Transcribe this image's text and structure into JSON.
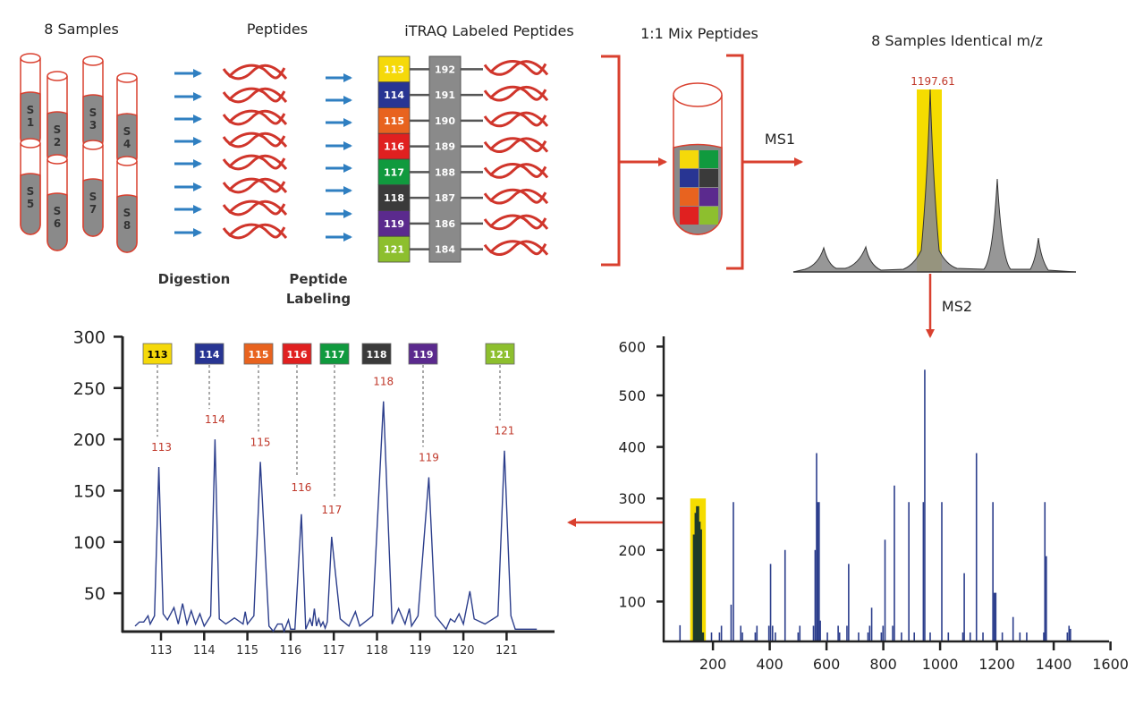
{
  "titles": {
    "samples": "8 Samples",
    "peptides": "Peptides",
    "itraq": "iTRAQ Labeled Peptides",
    "mix": "1:1 Mix Peptides",
    "identical": "8 Samples Identical m/z"
  },
  "steps": {
    "digestion": "Digestion",
    "labeling_line1": "Peptide",
    "labeling_line2": "Labeling",
    "ms1": "MS1",
    "ms2": "MS2"
  },
  "samples": [
    {
      "letter": "S",
      "number": "1"
    },
    {
      "letter": "S",
      "number": "2"
    },
    {
      "letter": "S",
      "number": "3"
    },
    {
      "letter": "S",
      "number": "4"
    },
    {
      "letter": "S",
      "number": "5"
    },
    {
      "letter": "S",
      "number": "6"
    },
    {
      "letter": "S",
      "number": "7"
    },
    {
      "letter": "S",
      "number": "8"
    }
  ],
  "tags": [
    {
      "reporter": "113",
      "balance": "192",
      "color": "#f5d90a"
    },
    {
      "reporter": "114",
      "balance": "191",
      "color": "#283593"
    },
    {
      "reporter": "115",
      "balance": "190",
      "color": "#e8631f"
    },
    {
      "reporter": "116",
      "balance": "189",
      "color": "#e02020"
    },
    {
      "reporter": "117",
      "balance": "188",
      "color": "#109a3e"
    },
    {
      "reporter": "118",
      "balance": "187",
      "color": "#3a3a3a"
    },
    {
      "reporter": "119",
      "balance": "186",
      "color": "#5b2a8e"
    },
    {
      "reporter": "121",
      "balance": "184",
      "color": "#8dbf2e"
    }
  ],
  "colors": {
    "arrow_blue": "#2f7fc1",
    "peptide_red": "#d0352b",
    "bracket_red": "#d9402f",
    "highlight_yellow": "#f5dc00",
    "balance_gray": "#8a8a8a",
    "spectrum_blue": "#2c3e8c",
    "ms1_fill": "#8c8c8c"
  },
  "ms1": {
    "precursor_label": "1197.61"
  },
  "chart_data": [
    {
      "type": "line",
      "xlabel": "",
      "ylabel": "",
      "xlim": [
        112.3,
        121.8
      ],
      "ylim": [
        12,
        300
      ],
      "x_ticks": [
        "113",
        "114",
        "115",
        "116",
        "117",
        "118",
        "119",
        "120",
        "121"
      ],
      "y_ticks": [
        "50",
        "100",
        "150",
        "200",
        "250",
        "300"
      ],
      "peaks": [
        {
          "label": "113",
          "x": 112.95,
          "y": 173
        },
        {
          "label": "114",
          "x": 114.25,
          "y": 200
        },
        {
          "label": "115",
          "x": 115.3,
          "y": 178
        },
        {
          "label": "116",
          "x": 116.25,
          "y": 127
        },
        {
          "label": "117",
          "x": 116.95,
          "y": 105
        },
        {
          "label": "118",
          "x": 118.15,
          "y": 237
        },
        {
          "label": "119",
          "x": 119.2,
          "y": 163
        },
        {
          "label": "121",
          "x": 120.95,
          "y": 189
        }
      ],
      "series": [
        {
          "x": [
            112.4,
            112.5,
            112.6,
            112.7,
            112.75,
            112.85,
            112.95,
            113.05,
            113.15,
            113.3,
            113.4,
            113.5,
            113.6,
            113.7,
            113.8,
            113.9,
            114.0,
            114.15,
            114.25,
            114.35,
            114.5,
            114.7,
            114.9,
            114.95,
            115.0,
            115.15,
            115.3,
            115.5,
            115.6,
            115.7,
            115.8,
            115.85,
            115.95,
            116.0,
            116.1,
            116.25,
            116.35,
            116.45,
            116.5,
            116.55,
            116.6,
            116.65,
            116.7,
            116.75,
            116.8,
            116.85,
            116.95,
            117.15,
            117.35,
            117.5,
            117.6,
            117.9,
            118.15,
            118.35,
            118.5,
            118.65,
            118.75,
            118.8,
            118.95,
            119.2,
            119.35,
            119.6,
            119.7,
            119.8,
            119.9,
            120.0,
            120.15,
            120.25,
            120.5,
            120.8,
            120.95,
            121.1,
            121.2,
            121.7
          ],
          "y": [
            18,
            22,
            22,
            28,
            20,
            28,
            173,
            30,
            24,
            36,
            20,
            40,
            20,
            33,
            20,
            30,
            18,
            28,
            200,
            25,
            20,
            26,
            20,
            32,
            20,
            28,
            178,
            18,
            13,
            20,
            20,
            13,
            24,
            15,
            15,
            127,
            15,
            25,
            18,
            35,
            18,
            25,
            18,
            22,
            16,
            22,
            105,
            25,
            18,
            32,
            18,
            28,
            237,
            20,
            35,
            20,
            35,
            18,
            28,
            163,
            28,
            15,
            25,
            22,
            30,
            20,
            52,
            25,
            20,
            28,
            189,
            28,
            15,
            15
          ]
        }
      ]
    },
    {
      "type": "bar",
      "xlabel": "",
      "ylabel": "",
      "xlim": [
        0,
        1600
      ],
      "ylim": [
        0,
        600
      ],
      "x_ticks": [
        "200",
        "400",
        "600",
        "800",
        "1000",
        "1200",
        "1400",
        "1600"
      ],
      "y_ticks": [
        "100",
        "200",
        "300",
        "400",
        "500",
        "600"
      ],
      "highlight_range": [
        120,
        175
      ],
      "highlighted_bars": {
        "x": [
          135,
          141,
          146,
          151,
          156,
          163
        ],
        "y": [
          230,
          272,
          285,
          255,
          240,
          40
        ]
      },
      "series": [
        {
          "x": [
            84,
            195,
            223,
            230,
            264,
            272,
            298,
            304,
            349,
            355,
            397,
            403,
            410,
            420,
            454,
            500,
            506,
            554,
            560,
            565,
            569,
            574,
            578,
            603,
            641,
            646,
            672,
            678,
            713,
            746,
            752,
            759,
            793,
            799,
            806,
            833,
            839,
            864,
            890,
            909,
            941,
            946,
            965,
            1006,
            1029,
            1080,
            1085,
            1106,
            1128,
            1151,
            1186,
            1191,
            1196,
            1219,
            1257,
            1281,
            1305,
            1365,
            1369,
            1374,
            1448,
            1454,
            1459
          ],
          "y": [
            54,
            40,
            40,
            53,
            94,
            293,
            53,
            40,
            40,
            53,
            53,
            173,
            53,
            40,
            200,
            40,
            53,
            53,
            200,
            388,
            293,
            293,
            63,
            40,
            53,
            40,
            53,
            173,
            40,
            40,
            53,
            88,
            40,
            53,
            220,
            53,
            325,
            40,
            293,
            40,
            293,
            550,
            40,
            293,
            40,
            40,
            155,
            40,
            388,
            40,
            293,
            117,
            117,
            40,
            70,
            40,
            40,
            40,
            293,
            188,
            40,
            53,
            47
          ]
        }
      ]
    }
  ]
}
